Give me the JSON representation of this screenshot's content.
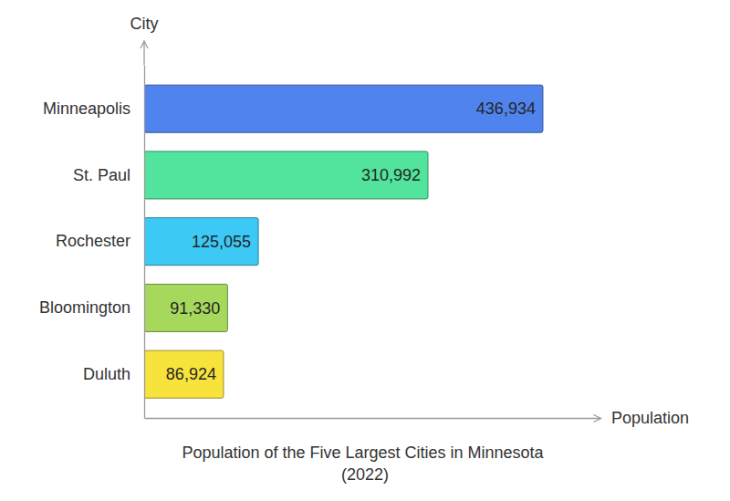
{
  "chart_data": {
    "type": "bar",
    "orientation": "horizontal",
    "title": "Population of the Five Largest Cities in Minnesota (2022)",
    "xlabel": "Population",
    "ylabel": "City",
    "categories": [
      "Minneapolis",
      "St. Paul",
      "Rochester",
      "Bloomington",
      "Duluth"
    ],
    "values": [
      436934,
      310992,
      125055,
      91330,
      86924
    ],
    "value_labels": [
      "436,934",
      "310,992",
      "125,055",
      "91,330",
      "86,924"
    ],
    "colors": [
      "#4f83ee",
      "#52e39c",
      "#3cc9f5",
      "#a6d85c",
      "#f8e23c"
    ],
    "xlim": [
      0,
      500000
    ],
    "data_labels": true,
    "tick_labels": "y",
    "grid": false
  }
}
